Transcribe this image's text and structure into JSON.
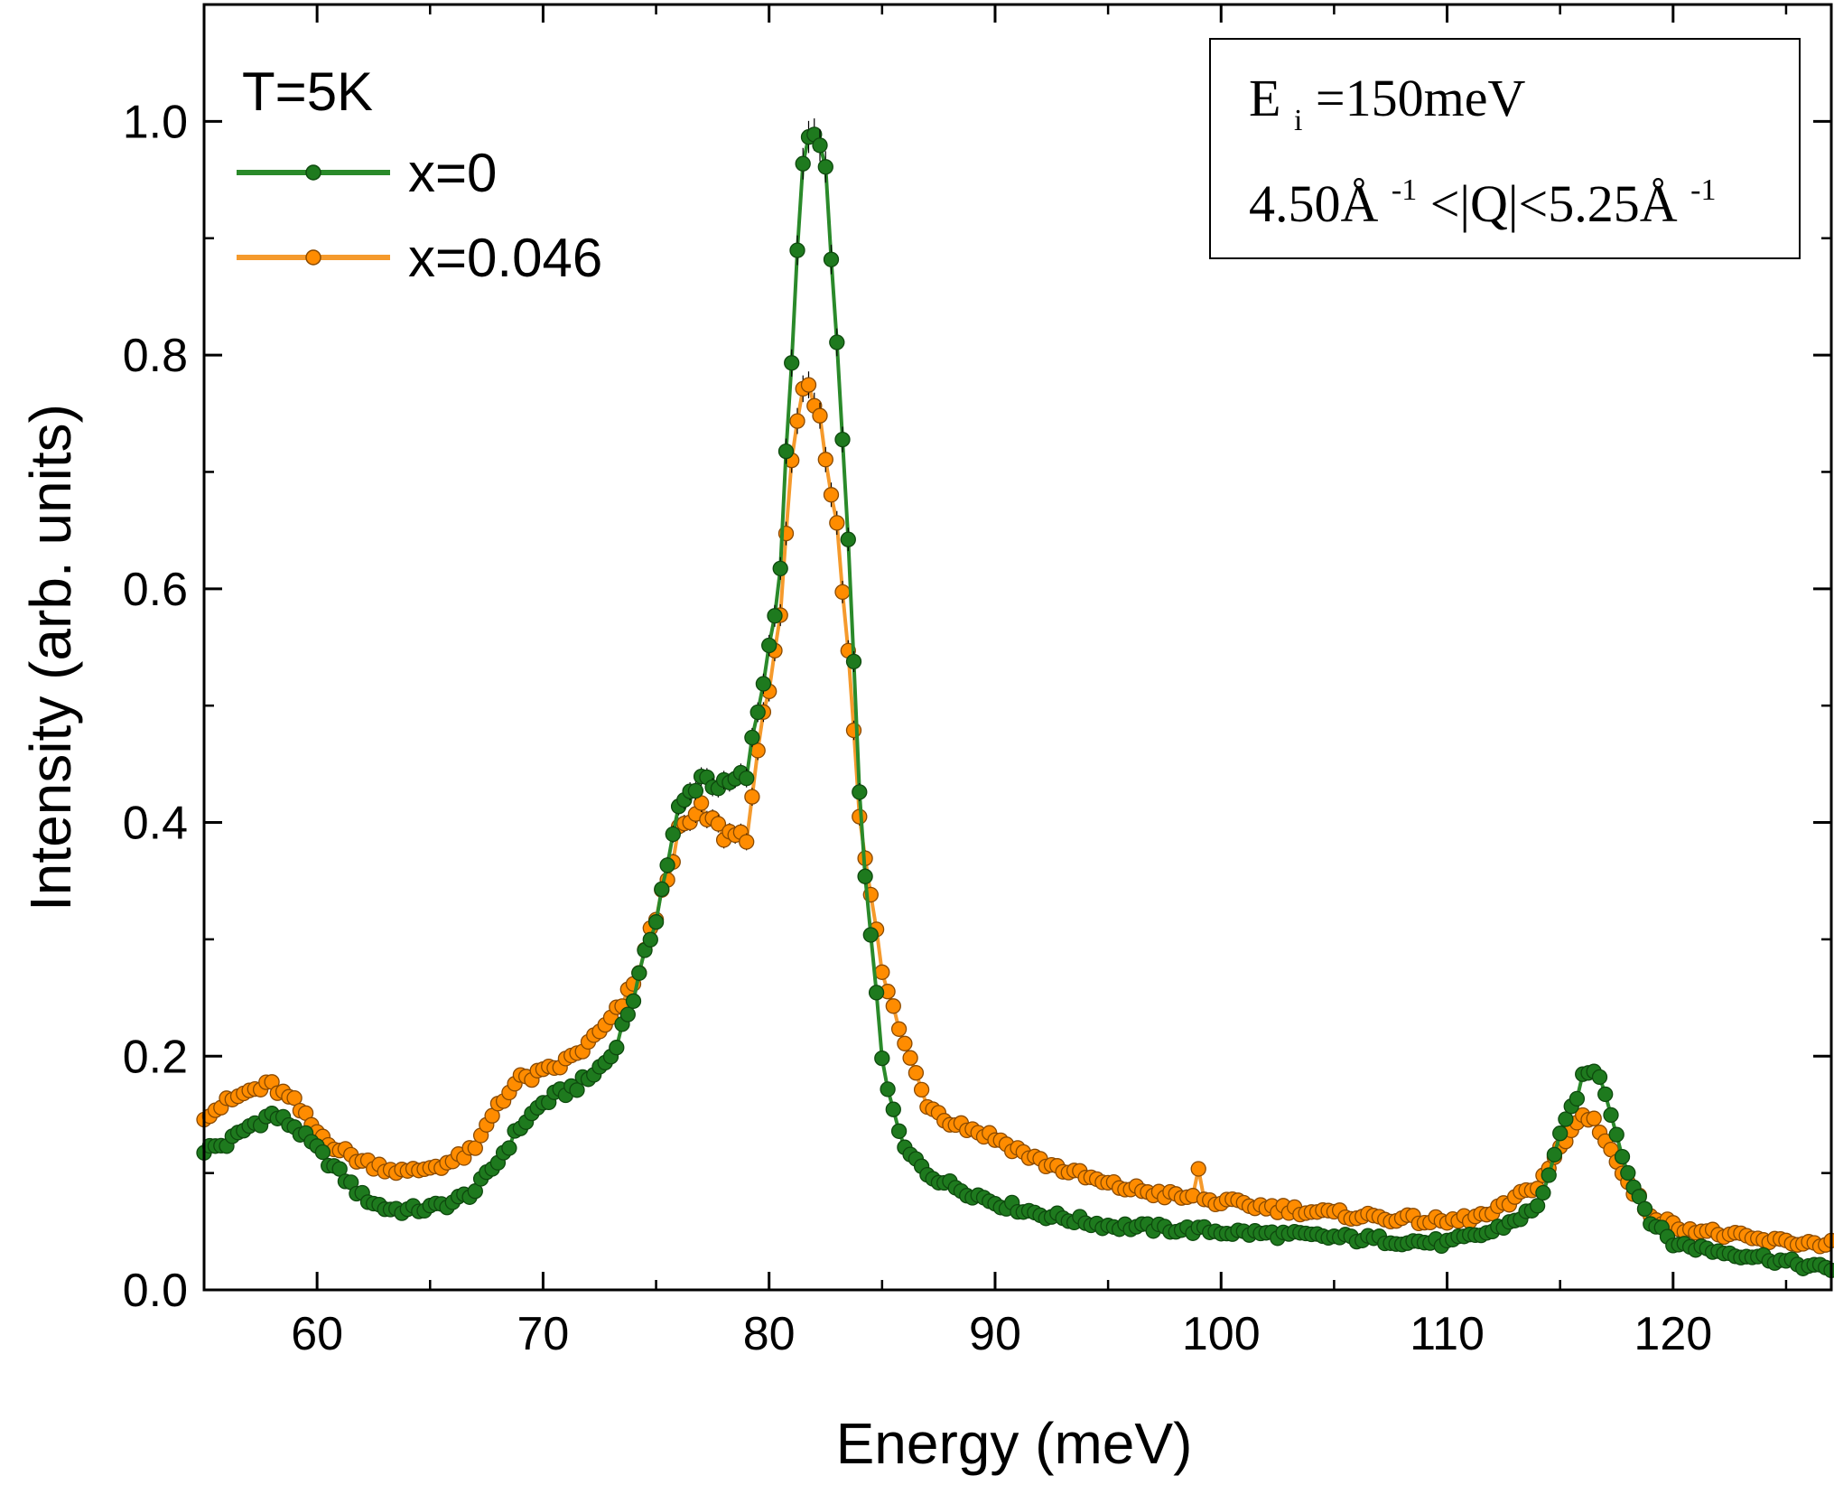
{
  "chart_data": {
    "type": "scatter",
    "xlabel": "Energy (meV)",
    "ylabel": "Intensity (arb. units)",
    "xlim": [
      55,
      127
    ],
    "ylim": [
      0,
      1.1
    ],
    "xticks": [
      60,
      70,
      80,
      90,
      100,
      110,
      120
    ],
    "xtick_labels": [
      "60",
      "70",
      "80",
      "90",
      "100",
      "110",
      "120"
    ],
    "yticks": [
      0,
      0.2,
      0.4,
      0.6,
      0.8,
      1.0
    ],
    "ytick_labels": [
      "0.0",
      "0.2",
      "0.4",
      "0.6",
      "0.8",
      "1.0"
    ],
    "legend": {
      "title": "T=5K",
      "position": "top-left"
    },
    "annotation": {
      "position": "top-right",
      "line1": {
        "base": "E",
        "sub": "i",
        "rest": "=150meV"
      },
      "line2": {
        "a": "4.50Å",
        "a_sup": "-1",
        "mid": "<|Q|<5.25Å",
        "b_sup": "-1"
      }
    },
    "series": [
      {
        "name": "x=0",
        "color": "#1e7a1e",
        "line_color": "#2a8a2a",
        "anchors": [
          [
            55,
            0.12
          ],
          [
            56,
            0.125
          ],
          [
            57,
            0.14
          ],
          [
            58,
            0.15
          ],
          [
            59,
            0.14
          ],
          [
            60,
            0.12
          ],
          [
            61,
            0.1
          ],
          [
            62,
            0.08
          ],
          [
            63,
            0.07
          ],
          [
            64,
            0.068
          ],
          [
            65,
            0.07
          ],
          [
            66,
            0.075
          ],
          [
            67,
            0.085
          ],
          [
            68,
            0.11
          ],
          [
            69,
            0.14
          ],
          [
            70,
            0.16
          ],
          [
            71,
            0.17
          ],
          [
            72,
            0.18
          ],
          [
            73,
            0.2
          ],
          [
            74,
            0.25
          ],
          [
            75,
            0.32
          ],
          [
            76,
            0.41
          ],
          [
            77,
            0.44
          ],
          [
            78,
            0.43
          ],
          [
            79,
            0.44
          ],
          [
            80,
            0.55
          ],
          [
            80.5,
            0.62
          ],
          [
            81,
            0.8
          ],
          [
            81.5,
            0.96
          ],
          [
            82,
            1.0
          ],
          [
            82.5,
            0.95
          ],
          [
            83,
            0.81
          ],
          [
            83.5,
            0.64
          ],
          [
            84,
            0.42
          ],
          [
            84.5,
            0.3
          ],
          [
            85,
            0.2
          ],
          [
            85.5,
            0.15
          ],
          [
            86,
            0.12
          ],
          [
            87,
            0.1
          ],
          [
            88,
            0.09
          ],
          [
            90,
            0.075
          ],
          [
            92,
            0.065
          ],
          [
            95,
            0.055
          ],
          [
            100,
            0.05
          ],
          [
            105,
            0.045
          ],
          [
            110,
            0.04
          ],
          [
            112,
            0.05
          ],
          [
            114,
            0.07
          ],
          [
            115,
            0.13
          ],
          [
            116,
            0.18
          ],
          [
            116.5,
            0.19
          ],
          [
            117,
            0.17
          ],
          [
            118,
            0.1
          ],
          [
            119,
            0.06
          ],
          [
            120,
            0.04
          ],
          [
            122,
            0.033
          ],
          [
            124,
            0.028
          ],
          [
            126,
            0.02
          ],
          [
            127,
            0.018
          ]
        ],
        "features": []
      },
      {
        "name": "x=0.046",
        "color": "#ff8c00",
        "line_color": "#f59a2c",
        "anchors": [
          [
            55,
            0.15
          ],
          [
            56,
            0.16
          ],
          [
            57,
            0.17
          ],
          [
            58,
            0.175
          ],
          [
            59,
            0.16
          ],
          [
            60,
            0.135
          ],
          [
            61,
            0.12
          ],
          [
            62,
            0.11
          ],
          [
            63,
            0.105
          ],
          [
            64,
            0.1
          ],
          [
            65,
            0.105
          ],
          [
            66,
            0.11
          ],
          [
            67,
            0.12
          ],
          [
            68,
            0.16
          ],
          [
            69,
            0.18
          ],
          [
            70,
            0.185
          ],
          [
            71,
            0.195
          ],
          [
            72,
            0.21
          ],
          [
            73,
            0.23
          ],
          [
            74,
            0.26
          ],
          [
            75,
            0.32
          ],
          [
            76,
            0.39
          ],
          [
            77,
            0.41
          ],
          [
            78,
            0.39
          ],
          [
            79,
            0.39
          ],
          [
            80,
            0.52
          ],
          [
            80.5,
            0.58
          ],
          [
            81,
            0.7
          ],
          [
            81.5,
            0.77
          ],
          [
            82,
            0.76
          ],
          [
            82.5,
            0.72
          ],
          [
            83,
            0.65
          ],
          [
            83.5,
            0.55
          ],
          [
            84,
            0.41
          ],
          [
            85,
            0.27
          ],
          [
            86,
            0.21
          ],
          [
            87,
            0.16
          ],
          [
            88,
            0.145
          ],
          [
            90,
            0.13
          ],
          [
            92,
            0.11
          ],
          [
            95,
            0.09
          ],
          [
            98,
            0.08
          ],
          [
            100,
            0.075
          ],
          [
            105,
            0.065
          ],
          [
            110,
            0.058
          ],
          [
            112,
            0.065
          ],
          [
            114,
            0.09
          ],
          [
            115,
            0.12
          ],
          [
            116,
            0.15
          ],
          [
            116.5,
            0.145
          ],
          [
            117,
            0.13
          ],
          [
            118,
            0.09
          ],
          [
            119,
            0.065
          ],
          [
            120,
            0.055
          ],
          [
            122,
            0.048
          ],
          [
            124,
            0.042
          ],
          [
            126,
            0.04
          ],
          [
            127,
            0.04
          ]
        ],
        "features": [
          {
            "x": 99,
            "y": 0.105
          }
        ]
      }
    ]
  }
}
